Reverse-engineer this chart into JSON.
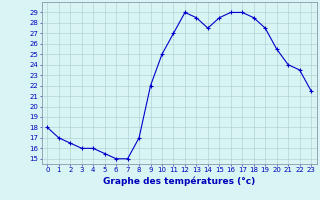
{
  "hours": [
    0,
    1,
    2,
    3,
    4,
    5,
    6,
    7,
    8,
    9,
    10,
    11,
    12,
    13,
    14,
    15,
    16,
    17,
    18,
    19,
    20,
    21,
    22,
    23
  ],
  "temps": [
    18,
    17,
    16.5,
    16,
    16,
    15.5,
    15,
    15,
    17,
    22,
    25,
    27,
    29,
    28.5,
    27.5,
    28.5,
    29,
    29,
    28.5,
    27.5,
    25.5,
    24,
    23.5,
    21.5
  ],
  "line_color": "#0000cc",
  "marker": "+",
  "bg_color": "#d8f4f4",
  "grid_color": "#aacccc",
  "xlabel": "Graphe des températures (°c)",
  "ylim_min": 14.5,
  "ylim_max": 30.0,
  "yticks": [
    15,
    16,
    17,
    18,
    19,
    20,
    21,
    22,
    23,
    24,
    25,
    26,
    27,
    28,
    29
  ],
  "xticks": [
    0,
    1,
    2,
    3,
    4,
    5,
    6,
    7,
    8,
    9,
    10,
    11,
    12,
    13,
    14,
    15,
    16,
    17,
    18,
    19,
    20,
    21,
    22,
    23
  ],
  "tick_fontsize": 5.0,
  "label_fontsize": 6.5,
  "label_color": "#0000bb",
  "grid_linewidth": 0.4,
  "line_width": 0.8,
  "marker_size": 3.0,
  "marker_edge_width": 0.8
}
